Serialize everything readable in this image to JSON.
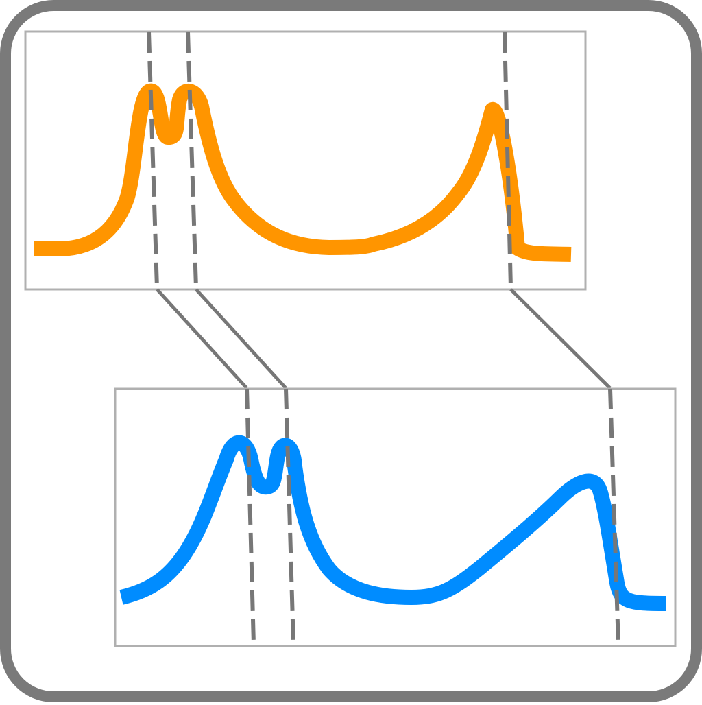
{
  "icon": {
    "name": "signal-alignment-icon",
    "colors": {
      "frame": "#7a7a7a",
      "panel_border": "#b0b0b0",
      "top_curve": "#ff9500",
      "bottom_curve": "#008cff",
      "guides": "#777777"
    },
    "top_panel": {
      "curve_color": "#ff9500",
      "peaks": 3
    },
    "bottom_panel": {
      "curve_color": "#008cff",
      "peaks": 3
    },
    "alignment_guides": 3
  }
}
